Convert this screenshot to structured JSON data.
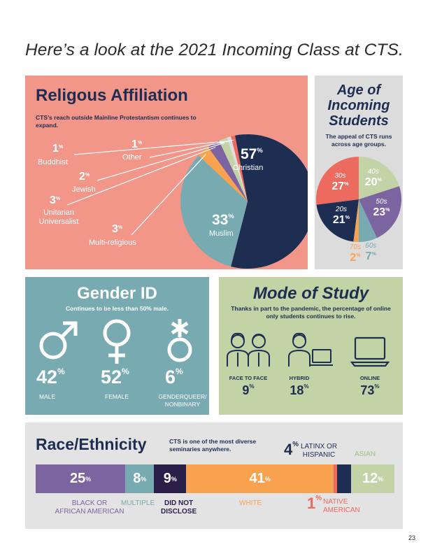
{
  "headline": "Here’s a look at the 2021 Incoming Class at CTS.",
  "religion": {
    "title": "Religous Affiliation",
    "subtitle": "CTS’s reach outside Mainline Protestantism continues to expand.",
    "pct_suffix": "%",
    "items": [
      {
        "label": "Christian",
        "value": 57,
        "color": "#1e2e52"
      },
      {
        "label": "Muslim",
        "value": 33,
        "color": "#78aab1"
      },
      {
        "label": "Multi-religious",
        "value": 3,
        "color": "#f9a350"
      },
      {
        "label": "Unitarian Universalist",
        "value": 3,
        "color": "#7b64a0"
      },
      {
        "label": "Jewish",
        "value": 2,
        "color": "#c2d4a6"
      },
      {
        "label": "Buddhist",
        "value": 1,
        "color": "#dcdcdc"
      },
      {
        "label": "Other",
        "value": 1,
        "color": "#ec6a5e"
      }
    ],
    "labels": {
      "buddhist_pct": "1",
      "buddhist": "Buddhist",
      "other_pct": "1",
      "other": "Other",
      "jewish_pct": "2",
      "jewish": "Jewish",
      "uu_pct": "3",
      "uu_1": "Unitarian",
      "uu_2": "Universalist",
      "multi_pct": "3",
      "multi": "Multi-religious",
      "christian_pct": "57",
      "christian": "Christian",
      "muslim_pct": "33",
      "muslim": "Muslim"
    }
  },
  "age": {
    "title_1": "Age of",
    "title_2": "Incoming",
    "title_3": "Students",
    "subtitle": "The appeal of CTS runs across age groups.",
    "pct_suffix": "%",
    "items": [
      {
        "decade": "40s",
        "value": 20,
        "color": "#c2d4a6",
        "text_color": "#ffffff"
      },
      {
        "decade": "50s",
        "value": 23,
        "color": "#7b64a0",
        "text_color": "#ffffff"
      },
      {
        "decade": "60s",
        "value": 7,
        "color": "#78aab1",
        "text_color": "#78aab1"
      },
      {
        "decade": "70s",
        "value": 2,
        "color": "#f9a350",
        "text_color": "#f9a350"
      },
      {
        "decade": "20s",
        "value": 21,
        "color": "#1e2e52",
        "text_color": "#ffffff"
      },
      {
        "decade": "30s",
        "value": 27,
        "color": "#ec6a5e",
        "text_color": "#ffffff"
      }
    ]
  },
  "gender": {
    "title": "Gender ID",
    "subtitle": "Continues to be less than 50% male.",
    "pct_suffix": "%",
    "items": [
      {
        "value": "42",
        "label_1": "MALE",
        "label_2": ""
      },
      {
        "value": "52",
        "label_1": "FEMALE",
        "label_2": ""
      },
      {
        "value": "6",
        "label_1": "GENDERQUEER/",
        "label_2": "NONBINARY"
      }
    ],
    "icons": [
      "male-symbol-icon",
      "female-symbol-icon",
      "genderqueer-symbol-icon"
    ]
  },
  "mode": {
    "title": "Mode of Study",
    "subtitle": "Thanks in part to the pandemic, the percentage of online only students continues to rise.",
    "pct_suffix": "%",
    "items": [
      {
        "label": "FACE TO FACE",
        "value": "9"
      },
      {
        "label": "HYBRID",
        "value": "18"
      },
      {
        "label": "ONLINE",
        "value": "73"
      }
    ],
    "icons": [
      "two-people-icon",
      "person-laptop-icon",
      "laptop-icon"
    ]
  },
  "race": {
    "title": "Race/Ethnicity",
    "subtitle": "CTS is one of the most diverse seminaries anywhere.",
    "pct_suffix": "%",
    "segments": [
      {
        "label": "BLACK OR AFRICAN AMERICAN",
        "value": 25,
        "color": "#7b64a0"
      },
      {
        "label": "MULTIPLE",
        "value": 8,
        "color": "#78aab1"
      },
      {
        "label": "DID NOT DISCLOSE",
        "value": 9,
        "color": "#2b1f4a"
      },
      {
        "label": "WHITE",
        "value": 41,
        "color": "#f9a350"
      },
      {
        "label": "NATIVE AMERICAN",
        "value": 1,
        "color": "#ec6a5e"
      },
      {
        "label": "LATINX OR HISPANIC",
        "value": 4,
        "color": "#1e2e52"
      },
      {
        "label": "ASIAN",
        "value": 12,
        "color": "#c2d4a6"
      }
    ],
    "label_lines": {
      "black_1": "BLACK OR",
      "black_2": "AFRICAN AMERICAN",
      "multiple": "MULTIPLE",
      "dnd_1": "DID NOT",
      "dnd_2": "DISCLOSE",
      "white": "WHITE",
      "native_pct": "1",
      "native_1": "NATIVE",
      "native_2": "AMERICAN",
      "latinx_pct": "4",
      "latinx_1": "LATINX OR",
      "latinx_2": "HISPANIC",
      "asian": "ASIAN"
    }
  },
  "page_number": "23"
}
